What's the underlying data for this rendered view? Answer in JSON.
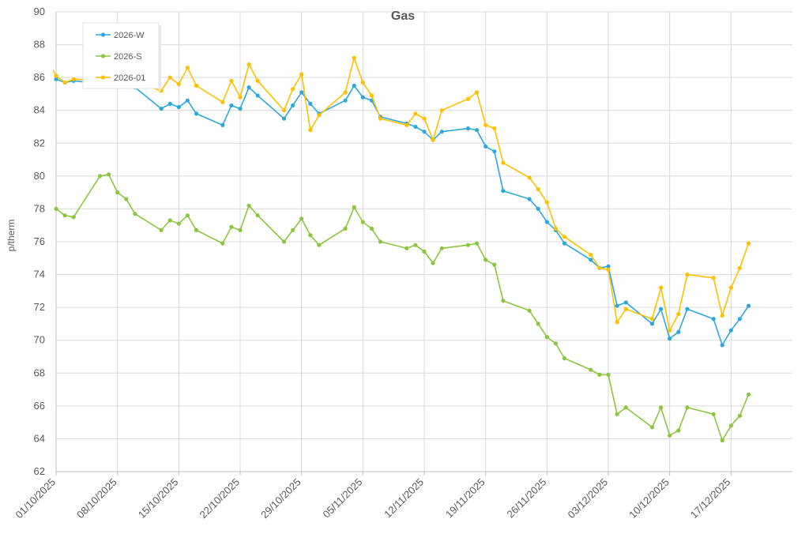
{
  "chart_data": {
    "type": "line",
    "title": "Gas",
    "xlabel": "",
    "ylabel": "p/therm",
    "ylim": [
      62,
      90
    ],
    "yticks": [
      62,
      64,
      66,
      68,
      70,
      72,
      74,
      76,
      78,
      80,
      82,
      84,
      86,
      88,
      90
    ],
    "xlim": [
      "2025-10-01",
      "2025-12-24"
    ],
    "xticks": [
      "01/10/2025",
      "08/10/2025",
      "15/10/2025",
      "22/10/2025",
      "29/10/2025",
      "05/11/2025",
      "12/11/2025",
      "19/11/2025",
      "26/11/2025",
      "03/12/2025",
      "10/12/2025",
      "17/12/2025"
    ],
    "grid": true,
    "legend": "top-left",
    "series": [
      {
        "name": "2026-W",
        "color": "#2EA8DC",
        "points": [
          [
            "2025-10-01",
            85.9
          ],
          [
            "2025-10-02",
            85.7
          ],
          [
            "2025-10-03",
            85.8
          ],
          [
            "2025-10-10",
            85.4
          ],
          [
            "2025-10-13",
            84.1
          ],
          [
            "2025-10-14",
            84.4
          ],
          [
            "2025-10-15",
            84.2
          ],
          [
            "2025-10-16",
            84.6
          ],
          [
            "2025-10-17",
            83.8
          ],
          [
            "2025-10-20",
            83.1
          ],
          [
            "2025-10-21",
            84.3
          ],
          [
            "2025-10-22",
            84.1
          ],
          [
            "2025-10-23",
            85.4
          ],
          [
            "2025-10-24",
            84.9
          ],
          [
            "2025-10-27",
            83.5
          ],
          [
            "2025-10-28",
            84.3
          ],
          [
            "2025-10-29",
            85.1
          ],
          [
            "2025-10-30",
            84.4
          ],
          [
            "2025-10-31",
            83.8
          ],
          [
            "2025-11-03",
            84.6
          ],
          [
            "2025-11-04",
            85.5
          ],
          [
            "2025-11-05",
            84.8
          ],
          [
            "2025-11-06",
            84.6
          ],
          [
            "2025-11-07",
            83.6
          ],
          [
            "2025-11-10",
            83.2
          ],
          [
            "2025-11-11",
            83.0
          ],
          [
            "2025-11-12",
            82.7
          ],
          [
            "2025-11-13",
            82.2
          ],
          [
            "2025-11-14",
            82.7
          ],
          [
            "2025-11-17",
            82.9
          ],
          [
            "2025-11-18",
            82.8
          ],
          [
            "2025-11-19",
            81.8
          ],
          [
            "2025-11-20",
            81.5
          ],
          [
            "2025-11-21",
            79.1
          ],
          [
            "2025-11-24",
            78.6
          ],
          [
            "2025-11-25",
            78.0
          ],
          [
            "2025-11-26",
            77.2
          ],
          [
            "2025-11-27",
            76.7
          ],
          [
            "2025-11-28",
            75.9
          ],
          [
            "2025-12-01",
            74.9
          ],
          [
            "2025-12-02",
            74.4
          ],
          [
            "2025-12-03",
            74.5
          ],
          [
            "2025-12-04",
            72.1
          ],
          [
            "2025-12-05",
            72.3
          ],
          [
            "2025-12-08",
            71.0
          ],
          [
            "2025-12-09",
            71.9
          ],
          [
            "2025-12-10",
            70.1
          ],
          [
            "2025-12-11",
            70.5
          ],
          [
            "2025-12-12",
            71.9
          ],
          [
            "2025-12-15",
            71.3
          ],
          [
            "2025-12-16",
            69.7
          ],
          [
            "2025-12-17",
            70.6
          ],
          [
            "2025-12-18",
            71.3
          ],
          [
            "2025-12-19",
            72.1
          ]
        ]
      },
      {
        "name": "2026-S",
        "color": "#8CC63F",
        "points": [
          [
            "2025-10-01",
            78.0
          ],
          [
            "2025-10-02",
            77.6
          ],
          [
            "2025-10-03",
            77.5
          ],
          [
            "2025-10-06",
            80.0
          ],
          [
            "2025-10-07",
            80.1
          ],
          [
            "2025-10-08",
            79.0
          ],
          [
            "2025-10-09",
            78.6
          ],
          [
            "2025-10-10",
            77.7
          ],
          [
            "2025-10-13",
            76.7
          ],
          [
            "2025-10-14",
            77.3
          ],
          [
            "2025-10-15",
            77.1
          ],
          [
            "2025-10-16",
            77.6
          ],
          [
            "2025-10-17",
            76.7
          ],
          [
            "2025-10-20",
            75.9
          ],
          [
            "2025-10-21",
            76.9
          ],
          [
            "2025-10-22",
            76.7
          ],
          [
            "2025-10-23",
            78.2
          ],
          [
            "2025-10-24",
            77.6
          ],
          [
            "2025-10-27",
            76.0
          ],
          [
            "2025-10-28",
            76.7
          ],
          [
            "2025-10-29",
            77.4
          ],
          [
            "2025-10-30",
            76.4
          ],
          [
            "2025-10-31",
            75.8
          ],
          [
            "2025-11-03",
            76.8
          ],
          [
            "2025-11-04",
            78.1
          ],
          [
            "2025-11-05",
            77.2
          ],
          [
            "2025-11-06",
            76.8
          ],
          [
            "2025-11-07",
            76.0
          ],
          [
            "2025-11-10",
            75.6
          ],
          [
            "2025-11-11",
            75.8
          ],
          [
            "2025-11-12",
            75.4
          ],
          [
            "2025-11-13",
            74.7
          ],
          [
            "2025-11-14",
            75.6
          ],
          [
            "2025-11-17",
            75.8
          ],
          [
            "2025-11-18",
            75.9
          ],
          [
            "2025-11-19",
            74.9
          ],
          [
            "2025-11-20",
            74.6
          ],
          [
            "2025-11-21",
            72.4
          ],
          [
            "2025-11-24",
            71.8
          ],
          [
            "2025-11-25",
            71.0
          ],
          [
            "2025-11-26",
            70.2
          ],
          [
            "2025-11-27",
            69.8
          ],
          [
            "2025-11-28",
            68.9
          ],
          [
            "2025-12-01",
            68.2
          ],
          [
            "2025-12-02",
            67.9
          ],
          [
            "2025-12-03",
            67.9
          ],
          [
            "2025-12-04",
            65.5
          ],
          [
            "2025-12-05",
            65.9
          ],
          [
            "2025-12-08",
            64.7
          ],
          [
            "2025-12-09",
            65.9
          ],
          [
            "2025-12-10",
            64.2
          ],
          [
            "2025-12-11",
            64.5
          ],
          [
            "2025-12-12",
            65.9
          ],
          [
            "2025-12-15",
            65.5
          ],
          [
            "2025-12-16",
            63.9
          ],
          [
            "2025-12-17",
            64.8
          ],
          [
            "2025-12-18",
            65.4
          ],
          [
            "2025-12-19",
            66.7
          ]
        ]
      },
      {
        "name": "2026-01",
        "color": "#FFC000",
        "points": [
          [
            "2025-09-30",
            87.1
          ],
          [
            "2025-10-01",
            86.1
          ],
          [
            "2025-10-02",
            85.7
          ],
          [
            "2025-10-03",
            85.9
          ],
          [
            "2025-10-10",
            85.7
          ],
          [
            "2025-10-13",
            85.2
          ],
          [
            "2025-10-14",
            86.0
          ],
          [
            "2025-10-15",
            85.6
          ],
          [
            "2025-10-16",
            86.6
          ],
          [
            "2025-10-17",
            85.5
          ],
          [
            "2025-10-20",
            84.5
          ],
          [
            "2025-10-21",
            85.8
          ],
          [
            "2025-10-22",
            84.8
          ],
          [
            "2025-10-23",
            86.8
          ],
          [
            "2025-10-24",
            85.8
          ],
          [
            "2025-10-27",
            84.0
          ],
          [
            "2025-10-28",
            85.3
          ],
          [
            "2025-10-29",
            86.2
          ],
          [
            "2025-10-30",
            82.8
          ],
          [
            "2025-10-31",
            83.7
          ],
          [
            "2025-11-03",
            85.1
          ],
          [
            "2025-11-04",
            87.2
          ],
          [
            "2025-11-05",
            85.7
          ],
          [
            "2025-11-06",
            84.9
          ],
          [
            "2025-11-07",
            83.5
          ],
          [
            "2025-11-10",
            83.1
          ],
          [
            "2025-11-11",
            83.8
          ],
          [
            "2025-11-12",
            83.5
          ],
          [
            "2025-11-13",
            82.2
          ],
          [
            "2025-11-14",
            84.0
          ],
          [
            "2025-11-17",
            84.7
          ],
          [
            "2025-11-18",
            85.1
          ],
          [
            "2025-11-19",
            83.1
          ],
          [
            "2025-11-20",
            82.9
          ],
          [
            "2025-11-21",
            80.8
          ],
          [
            "2025-11-24",
            79.9
          ],
          [
            "2025-11-25",
            79.2
          ],
          [
            "2025-11-26",
            78.4
          ],
          [
            "2025-11-27",
            76.8
          ],
          [
            "2025-11-28",
            76.3
          ],
          [
            "2025-12-01",
            75.2
          ],
          [
            "2025-12-02",
            74.4
          ],
          [
            "2025-12-03",
            74.3
          ],
          [
            "2025-12-04",
            71.1
          ],
          [
            "2025-12-05",
            71.9
          ],
          [
            "2025-12-08",
            71.3
          ],
          [
            "2025-12-09",
            73.2
          ],
          [
            "2025-12-10",
            70.6
          ],
          [
            "2025-12-11",
            71.6
          ],
          [
            "2025-12-12",
            74.0
          ],
          [
            "2025-12-15",
            73.8
          ],
          [
            "2025-12-16",
            71.5
          ],
          [
            "2025-12-17",
            73.2
          ],
          [
            "2025-12-18",
            74.4
          ],
          [
            "2025-12-19",
            75.9
          ]
        ]
      }
    ]
  }
}
